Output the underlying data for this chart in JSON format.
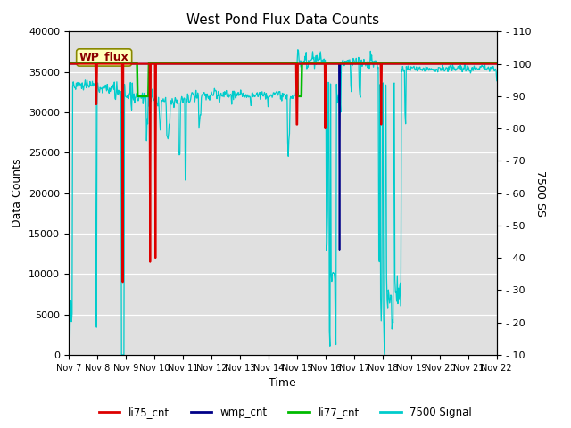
{
  "title": "West Pond Flux Data Counts",
  "xlabel": "Time",
  "ylabel_left": "Data Counts",
  "ylabel_right": "7500 SS",
  "ylim_left": [
    0,
    40000
  ],
  "ylim_right": [
    10,
    110
  ],
  "x_tick_labels": [
    "Nov 7",
    "Nov 8",
    "Nov 9",
    "Nov 10",
    "Nov 11",
    "Nov 12",
    "Nov 13",
    "Nov 14",
    "Nov 15",
    "Nov 16",
    "Nov 17",
    "Nov 18",
    "Nov 19",
    "Nov 20",
    "Nov 21",
    "Nov 22"
  ],
  "annotation_text": "WP_flux",
  "bg_color": "#e0e0e0",
  "legend_items": [
    "li75_cnt",
    "wmp_cnt",
    "li77_cnt",
    "7500 Signal"
  ],
  "li75_color": "#dd0000",
  "wmp_color": "#000088",
  "li77_color": "#00bb00",
  "signal_color": "#00cccc",
  "title_fontsize": 11,
  "left_yticks": [
    0,
    5000,
    10000,
    15000,
    20000,
    25000,
    30000,
    35000,
    40000
  ],
  "right_yticks": [
    10,
    20,
    30,
    40,
    50,
    60,
    70,
    80,
    90,
    100,
    110
  ]
}
